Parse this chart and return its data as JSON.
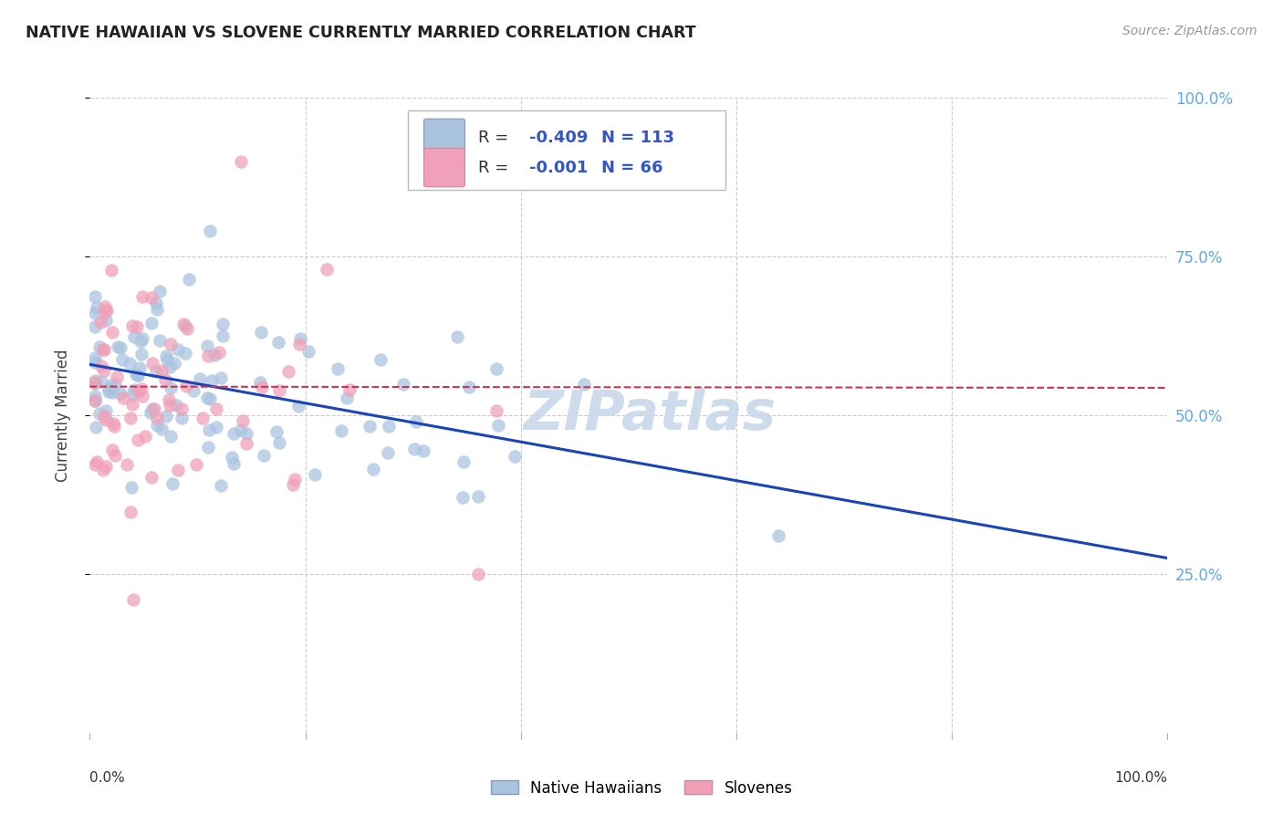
{
  "title": "NATIVE HAWAIIAN VS SLOVENE CURRENTLY MARRIED CORRELATION CHART",
  "source": "Source: ZipAtlas.com",
  "ylabel": "Currently Married",
  "blue_R": -0.409,
  "blue_N": 113,
  "pink_R": -0.001,
  "pink_N": 66,
  "blue_color": "#aac4e0",
  "pink_color": "#f0a0b8",
  "blue_edge_color": "#7aA0cc",
  "pink_edge_color": "#cc7090",
  "blue_line_color": "#1a44bb",
  "pink_line_color": "#cc3355",
  "watermark": "ZIPatlas",
  "watermark_color": "#c8d8ec",
  "grid_color": "#cccccc",
  "right_tick_color": "#55aaff",
  "source_color": "#999999",
  "title_color": "#222222",
  "legend_text_color": "#333333",
  "legend_value_color": "#3355cc",
  "xlim": [
    0.0,
    1.0
  ],
  "ylim": [
    0.0,
    1.0
  ],
  "ytick_positions": [
    0.25,
    0.5,
    0.75,
    1.0
  ],
  "ytick_labels": [
    "25.0%",
    "50.0%",
    "75.0%",
    "100.0%"
  ],
  "seed": 12
}
